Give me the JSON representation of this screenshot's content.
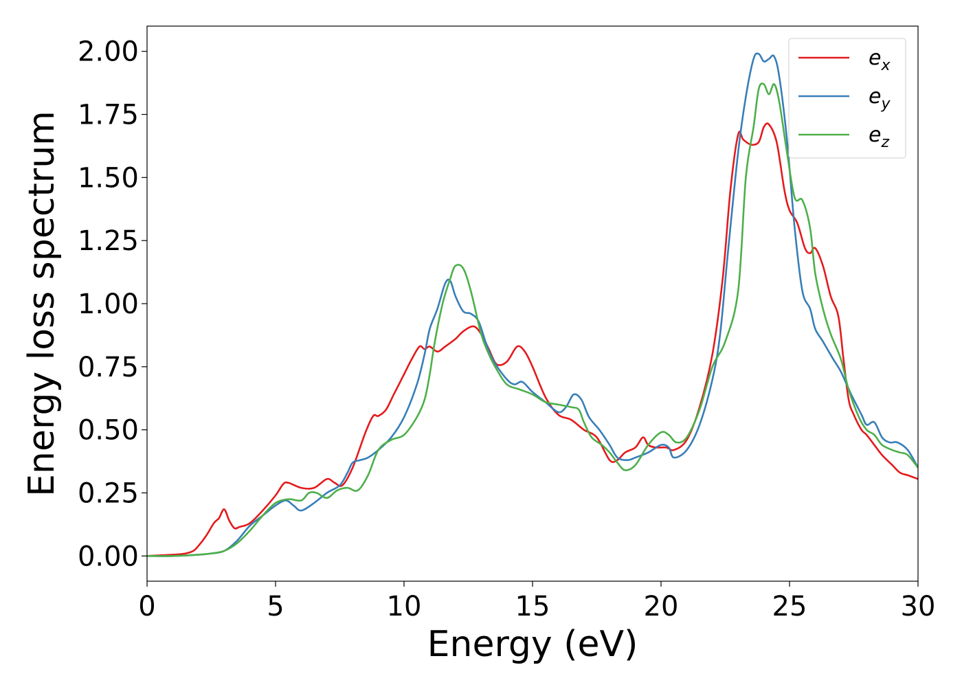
{
  "chart_data": {
    "type": "line",
    "xlabel": "Energy (eV)",
    "ylabel": "Energy loss spectrum",
    "xlim": [
      0,
      30
    ],
    "ylim": [
      -0.1,
      2.1
    ],
    "xticks": [
      0,
      5,
      10,
      15,
      20,
      25,
      30
    ],
    "yticks": [
      0.0,
      0.25,
      0.5,
      0.75,
      1.0,
      1.25,
      1.5,
      1.75,
      2.0
    ],
    "xtick_labels": [
      "0",
      "5",
      "10",
      "15",
      "20",
      "25",
      "30"
    ],
    "ytick_labels": [
      "0.00",
      "0.25",
      "0.50",
      "0.75",
      "1.00",
      "1.25",
      "1.50",
      "1.75",
      "2.00"
    ],
    "grid": false,
    "legend_position": "top-right",
    "series": [
      {
        "name": "e",
        "subscript": "x",
        "color": "#e41a1c",
        "x": [
          0,
          1,
          1.5,
          1.8,
          2.0,
          2.3,
          2.6,
          2.8,
          3.0,
          3.2,
          3.4,
          3.6,
          4.0,
          4.5,
          5.0,
          5.3,
          5.5,
          6.0,
          6.5,
          7.0,
          7.3,
          7.6,
          8.0,
          8.5,
          8.8,
          9.0,
          9.3,
          9.6,
          10.0,
          10.3,
          10.6,
          10.8,
          11.0,
          11.3,
          11.6,
          12.0,
          12.3,
          12.7,
          13.0,
          13.3,
          13.6,
          14.0,
          14.4,
          14.7,
          15.0,
          15.5,
          16.0,
          16.5,
          17.0,
          17.5,
          18.0,
          18.3,
          18.6,
          19.0,
          19.3,
          19.5,
          19.8,
          20.2,
          20.5,
          21.0,
          21.5,
          22.0,
          22.4,
          22.7,
          23.0,
          23.2,
          23.5,
          23.8,
          24.0,
          24.2,
          24.5,
          24.8,
          25.0,
          25.3,
          25.6,
          25.8,
          26.0,
          26.3,
          26.6,
          26.9,
          27.1,
          27.3,
          27.5,
          27.8,
          28.0,
          28.3,
          28.6,
          29.0,
          29.3,
          29.6,
          30.0
        ],
        "y": [
          0.0,
          0.005,
          0.01,
          0.02,
          0.04,
          0.08,
          0.13,
          0.15,
          0.185,
          0.14,
          0.11,
          0.115,
          0.13,
          0.18,
          0.24,
          0.285,
          0.29,
          0.27,
          0.27,
          0.305,
          0.29,
          0.28,
          0.35,
          0.49,
          0.555,
          0.555,
          0.58,
          0.64,
          0.72,
          0.78,
          0.83,
          0.82,
          0.83,
          0.81,
          0.83,
          0.86,
          0.89,
          0.91,
          0.88,
          0.82,
          0.76,
          0.77,
          0.83,
          0.81,
          0.75,
          0.63,
          0.56,
          0.54,
          0.5,
          0.47,
          0.38,
          0.38,
          0.41,
          0.43,
          0.47,
          0.44,
          0.43,
          0.43,
          0.42,
          0.46,
          0.59,
          0.8,
          1.1,
          1.45,
          1.67,
          1.65,
          1.63,
          1.64,
          1.7,
          1.71,
          1.64,
          1.45,
          1.37,
          1.32,
          1.22,
          1.2,
          1.22,
          1.15,
          1.03,
          0.95,
          0.78,
          0.62,
          0.56,
          0.5,
          0.48,
          0.44,
          0.4,
          0.36,
          0.33,
          0.32,
          0.305
        ]
      },
      {
        "name": "e",
        "subscript": "y",
        "color": "#377eb8",
        "x": [
          0,
          1,
          2,
          2.5,
          3.0,
          3.5,
          4.0,
          4.5,
          5.0,
          5.4,
          5.7,
          6.0,
          6.5,
          7.0,
          7.5,
          7.8,
          8.0,
          8.3,
          8.6,
          9.0,
          9.5,
          10.0,
          10.5,
          10.8,
          11.0,
          11.3,
          11.6,
          11.8,
          12.0,
          12.3,
          12.6,
          12.9,
          13.2,
          13.5,
          14.0,
          14.3,
          14.6,
          15.0,
          15.5,
          16.0,
          16.3,
          16.6,
          16.9,
          17.2,
          17.6,
          18.0,
          18.3,
          18.7,
          19.0,
          19.5,
          20.0,
          20.3,
          20.5,
          21.0,
          21.5,
          22.0,
          22.3,
          22.6,
          23.0,
          23.3,
          23.6,
          23.8,
          24.0,
          24.2,
          24.4,
          24.6,
          24.9,
          25.2,
          25.5,
          25.8,
          26.0,
          26.3,
          26.7,
          27.0,
          27.4,
          27.8,
          28.0,
          28.3,
          28.6,
          28.9,
          29.2,
          29.6,
          30.0
        ],
        "y": [
          0.0,
          0.0,
          0.005,
          0.01,
          0.02,
          0.06,
          0.12,
          0.16,
          0.2,
          0.22,
          0.2,
          0.18,
          0.21,
          0.25,
          0.28,
          0.33,
          0.37,
          0.38,
          0.39,
          0.42,
          0.47,
          0.55,
          0.68,
          0.8,
          0.9,
          0.98,
          1.08,
          1.09,
          1.03,
          0.97,
          0.96,
          0.93,
          0.84,
          0.77,
          0.7,
          0.68,
          0.69,
          0.65,
          0.61,
          0.57,
          0.59,
          0.64,
          0.62,
          0.55,
          0.5,
          0.44,
          0.39,
          0.38,
          0.39,
          0.41,
          0.44,
          0.43,
          0.39,
          0.42,
          0.52,
          0.7,
          0.88,
          1.2,
          1.6,
          1.82,
          1.97,
          1.99,
          1.96,
          1.97,
          1.98,
          1.9,
          1.65,
          1.3,
          1.05,
          0.98,
          0.9,
          0.85,
          0.78,
          0.73,
          0.64,
          0.56,
          0.52,
          0.53,
          0.47,
          0.45,
          0.45,
          0.42,
          0.35
        ]
      },
      {
        "name": "e",
        "subscript": "z",
        "color": "#4daf4a",
        "x": [
          0,
          1,
          2,
          2.5,
          3.0,
          3.5,
          4.0,
          4.5,
          5.0,
          5.5,
          6.0,
          6.3,
          6.6,
          7.0,
          7.4,
          7.8,
          8.2,
          8.6,
          9.0,
          9.5,
          10.0,
          10.5,
          10.8,
          11.0,
          11.2,
          11.5,
          11.8,
          12.0,
          12.3,
          12.6,
          13.0,
          13.3,
          13.6,
          14.0,
          14.5,
          15.0,
          15.5,
          16.0,
          16.5,
          16.8,
          17.0,
          17.3,
          17.7,
          18.0,
          18.3,
          18.6,
          19.0,
          19.5,
          20.0,
          20.3,
          20.6,
          21.0,
          21.5,
          22.0,
          22.5,
          23.0,
          23.3,
          23.6,
          23.8,
          24.0,
          24.2,
          24.4,
          24.6,
          24.9,
          25.2,
          25.5,
          25.8,
          26.0,
          26.3,
          26.6,
          27.0,
          27.3,
          27.7,
          28.0,
          28.3,
          28.6,
          29.0,
          29.3,
          29.6,
          30.0
        ],
        "y": [
          0.0,
          0.0,
          0.005,
          0.01,
          0.02,
          0.05,
          0.1,
          0.16,
          0.21,
          0.225,
          0.22,
          0.25,
          0.25,
          0.23,
          0.26,
          0.27,
          0.26,
          0.32,
          0.42,
          0.46,
          0.48,
          0.55,
          0.62,
          0.72,
          0.85,
          1.0,
          1.1,
          1.15,
          1.14,
          1.05,
          0.88,
          0.8,
          0.74,
          0.68,
          0.66,
          0.64,
          0.61,
          0.6,
          0.59,
          0.58,
          0.53,
          0.47,
          0.44,
          0.41,
          0.37,
          0.34,
          0.36,
          0.44,
          0.49,
          0.48,
          0.45,
          0.47,
          0.58,
          0.75,
          0.85,
          1.05,
          1.5,
          1.7,
          1.85,
          1.87,
          1.83,
          1.87,
          1.8,
          1.6,
          1.42,
          1.41,
          1.3,
          1.12,
          0.98,
          0.88,
          0.78,
          0.66,
          0.55,
          0.5,
          0.48,
          0.44,
          0.42,
          0.41,
          0.4,
          0.35
        ]
      }
    ]
  }
}
